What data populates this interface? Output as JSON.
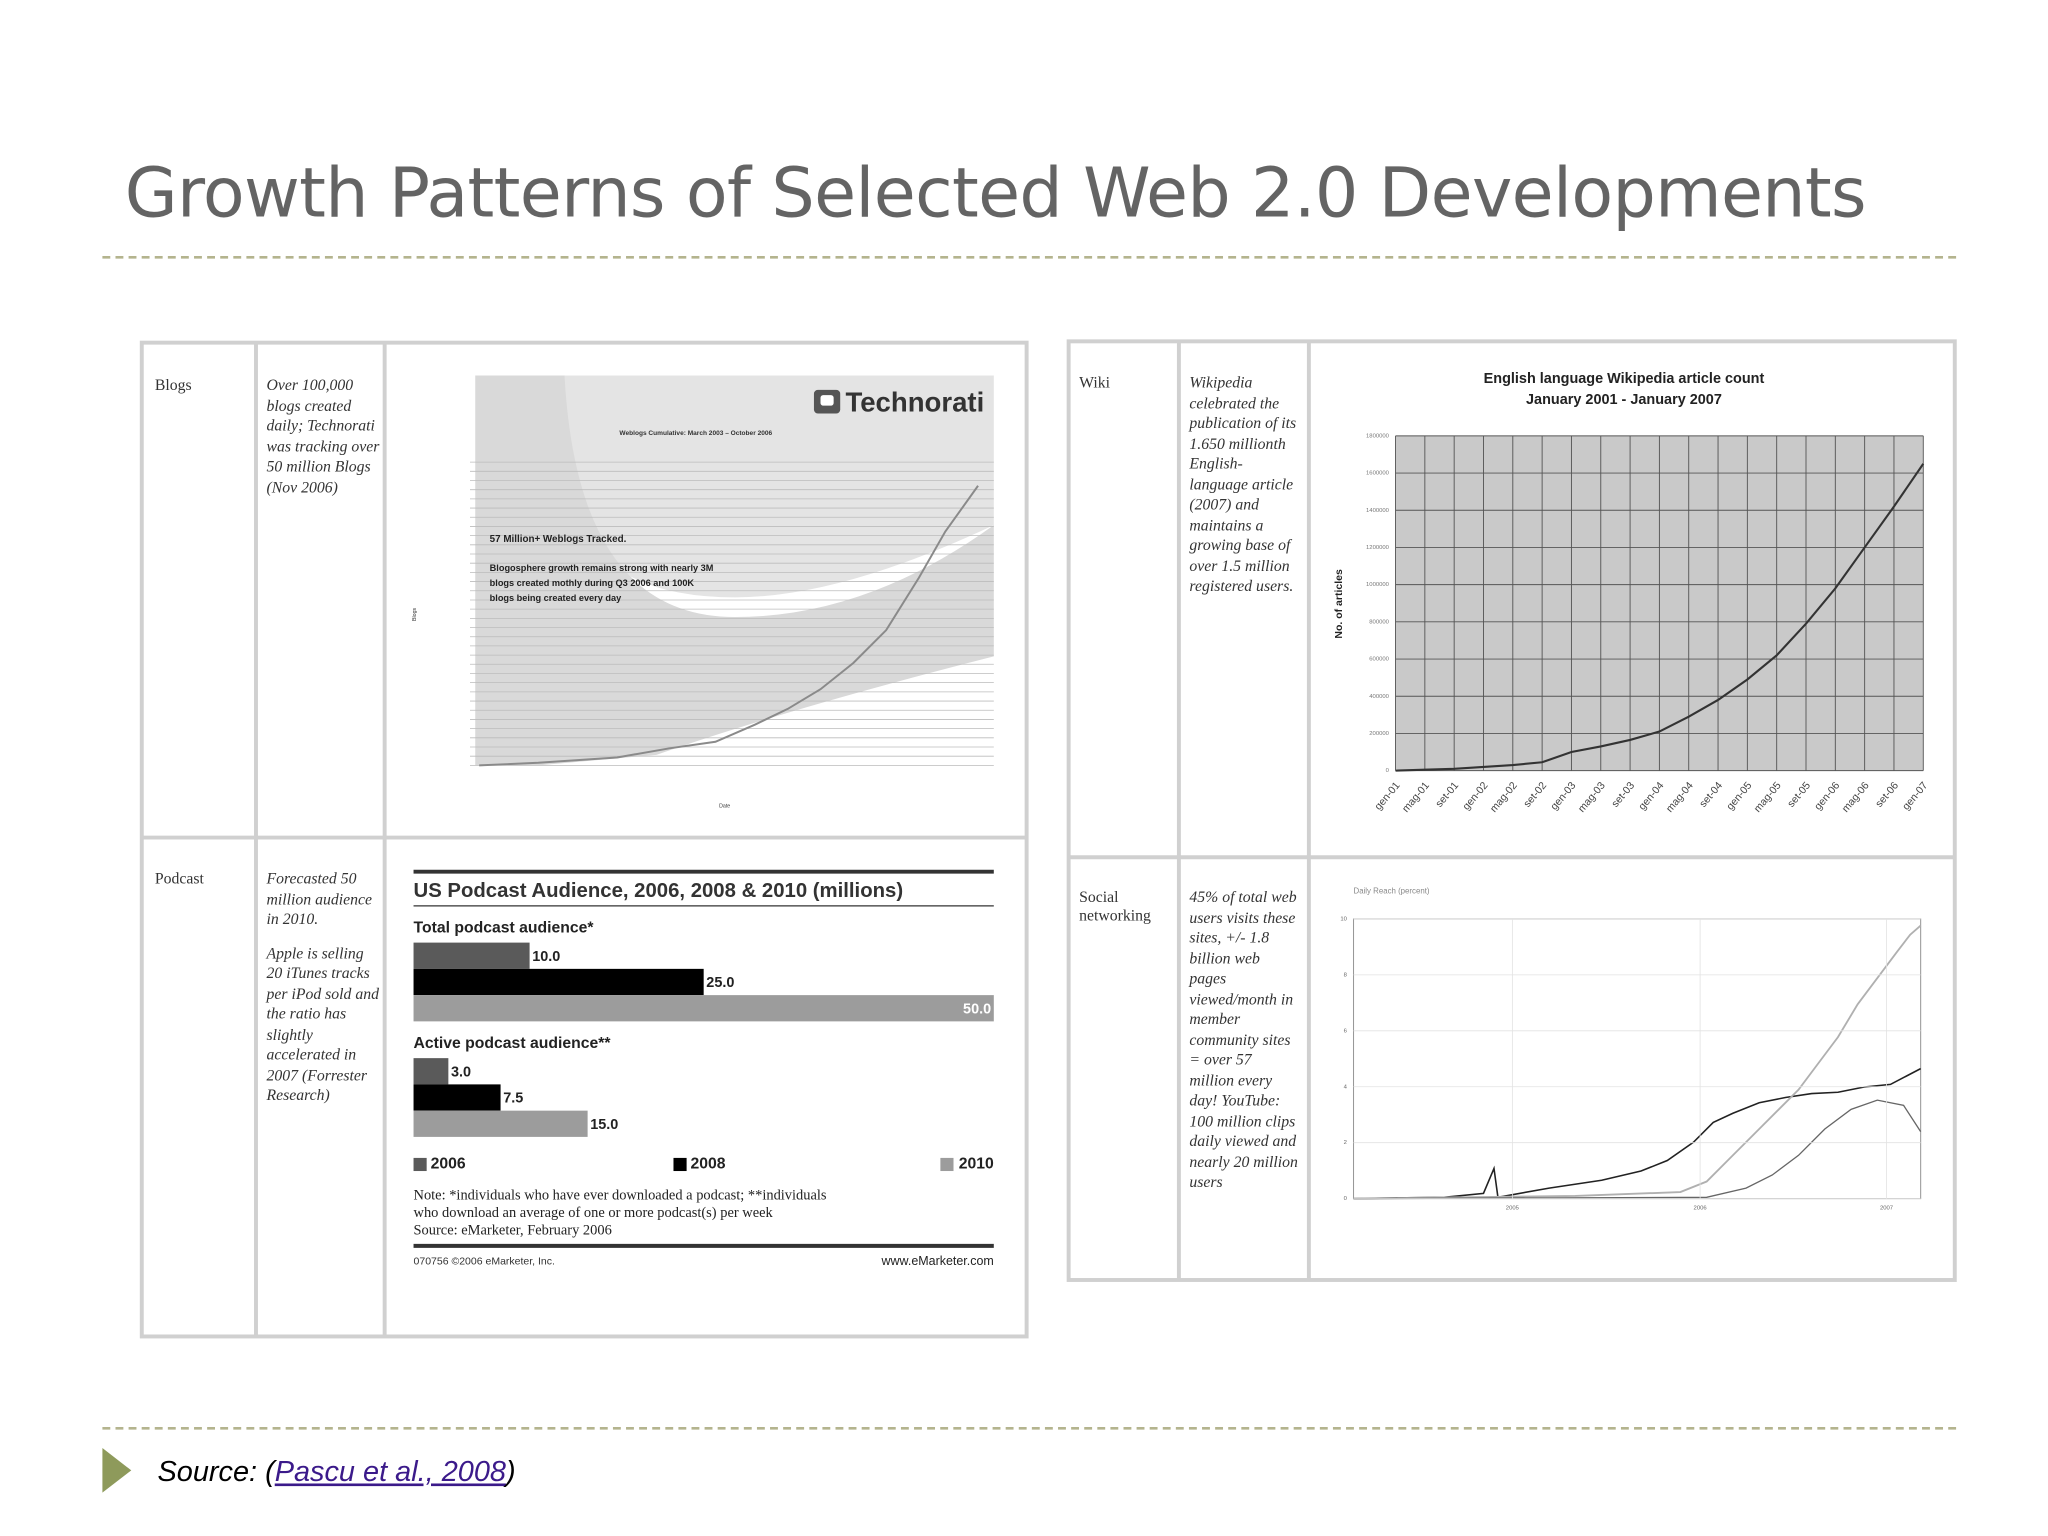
{
  "slide": {
    "title": "Growth Patterns of Selected Web 2.0 Developments",
    "source": {
      "prefix": "Source: (",
      "link": "Pascu et al., 2008",
      "suffix": ")"
    }
  },
  "left_table": {
    "rows": [
      {
        "label": "Blogs",
        "text": [
          "Over 100,000 blogs created daily; Technorati was tracking over 50 million Blogs (Nov 2006)"
        ]
      },
      {
        "label": "Podcast",
        "text": [
          "Forecasted 50 million audience in 2010.",
          "Apple is selling 20 iTunes tracks per iPod sold and the ratio has slightly accelerated in 2007 (Forrester Research)"
        ]
      }
    ]
  },
  "right_table": {
    "rows": [
      {
        "label": "Wiki",
        "text": [
          "Wikipedia celebrated the publication of its 1.650 millionth English-language article (2007) and maintains a growing base of over 1.5 million registered users."
        ]
      },
      {
        "label": "Social networking",
        "text": [
          "45% of total web users visits these sites, +/- 1.8 billion web pages viewed/month in member community sites = over 57 million every day! YouTube: 100 million clips daily viewed and nearly 20 million users"
        ]
      }
    ]
  },
  "blogs_chart": {
    "logo": "Technorati",
    "subtitle": "Weblogs Cumulative: March 2003 – October 2006",
    "headline": "57 Million+ Weblogs Tracked.",
    "text": [
      "Blogosphere growth remains strong with nearly 3M",
      "blogs created mothly during Q3 2006 and 100K",
      "blogs being created every day"
    ],
    "y_label": "Blogs",
    "x_label": "Date"
  },
  "podcast_chart": {
    "type": "bar",
    "title": "US Podcast Audience, 2006, 2008 & 2010 (millions)",
    "categories": [
      "Total podcast audience*",
      "Active podcast audience**"
    ],
    "series": [
      {
        "name": "2006",
        "color": "#5a5a5a",
        "values": [
          10,
          3
        ],
        "value_labels": [
          "10.0",
          "3.0"
        ]
      },
      {
        "name": "2008",
        "color": "#000000",
        "values": [
          25,
          7.5
        ],
        "value_labels": [
          "25.0",
          "7.5"
        ]
      },
      {
        "name": "2010",
        "color": "#9c9c9c",
        "values": [
          50,
          15
        ],
        "value_labels": [
          "50.0",
          "15.0"
        ]
      }
    ],
    "xlim": [
      0,
      50
    ],
    "notes": [
      "Note: *individuals who have ever downloaded a podcast; **individuals",
      "who download an average of one or more podcast(s) per week",
      "Source: eMarketer, February 2006"
    ],
    "footer_left": "070756 ©2006 eMarketer, Inc.",
    "footer_right": "www.eMarketer.com"
  },
  "wiki_chart": {
    "type": "line",
    "title": "English language Wikipedia article count",
    "subtitle": "January 2001 - January 2007",
    "y_label": "No. of articles",
    "categories": [
      "gen-01",
      "mag-01",
      "set-01",
      "gen-02",
      "mag-02",
      "set-02",
      "gen-03",
      "mag-03",
      "set-03",
      "gen-04",
      "mag-04",
      "set-04",
      "gen-05",
      "mag-05",
      "set-05",
      "gen-06",
      "mag-06",
      "set-06",
      "gen-07"
    ],
    "values": [
      0,
      5000,
      10000,
      20000,
      30000,
      45000,
      100000,
      130000,
      165000,
      210000,
      290000,
      380000,
      490000,
      620000,
      790000,
      980000,
      1200000,
      1420000,
      1650000
    ],
    "color": "#333333",
    "ylim": [
      0,
      1800000
    ],
    "yticks": [
      0,
      200000,
      400000,
      600000,
      800000,
      1000000,
      1200000,
      1400000,
      1600000,
      1800000
    ],
    "grid": true
  },
  "social_chart": {
    "title": "Daily Reach (percent)",
    "ylim": [
      0,
      10
    ],
    "yticks": [
      0,
      2,
      4,
      6,
      8,
      10
    ],
    "x_labels": [
      "2005",
      "2006",
      "2007"
    ]
  }
}
